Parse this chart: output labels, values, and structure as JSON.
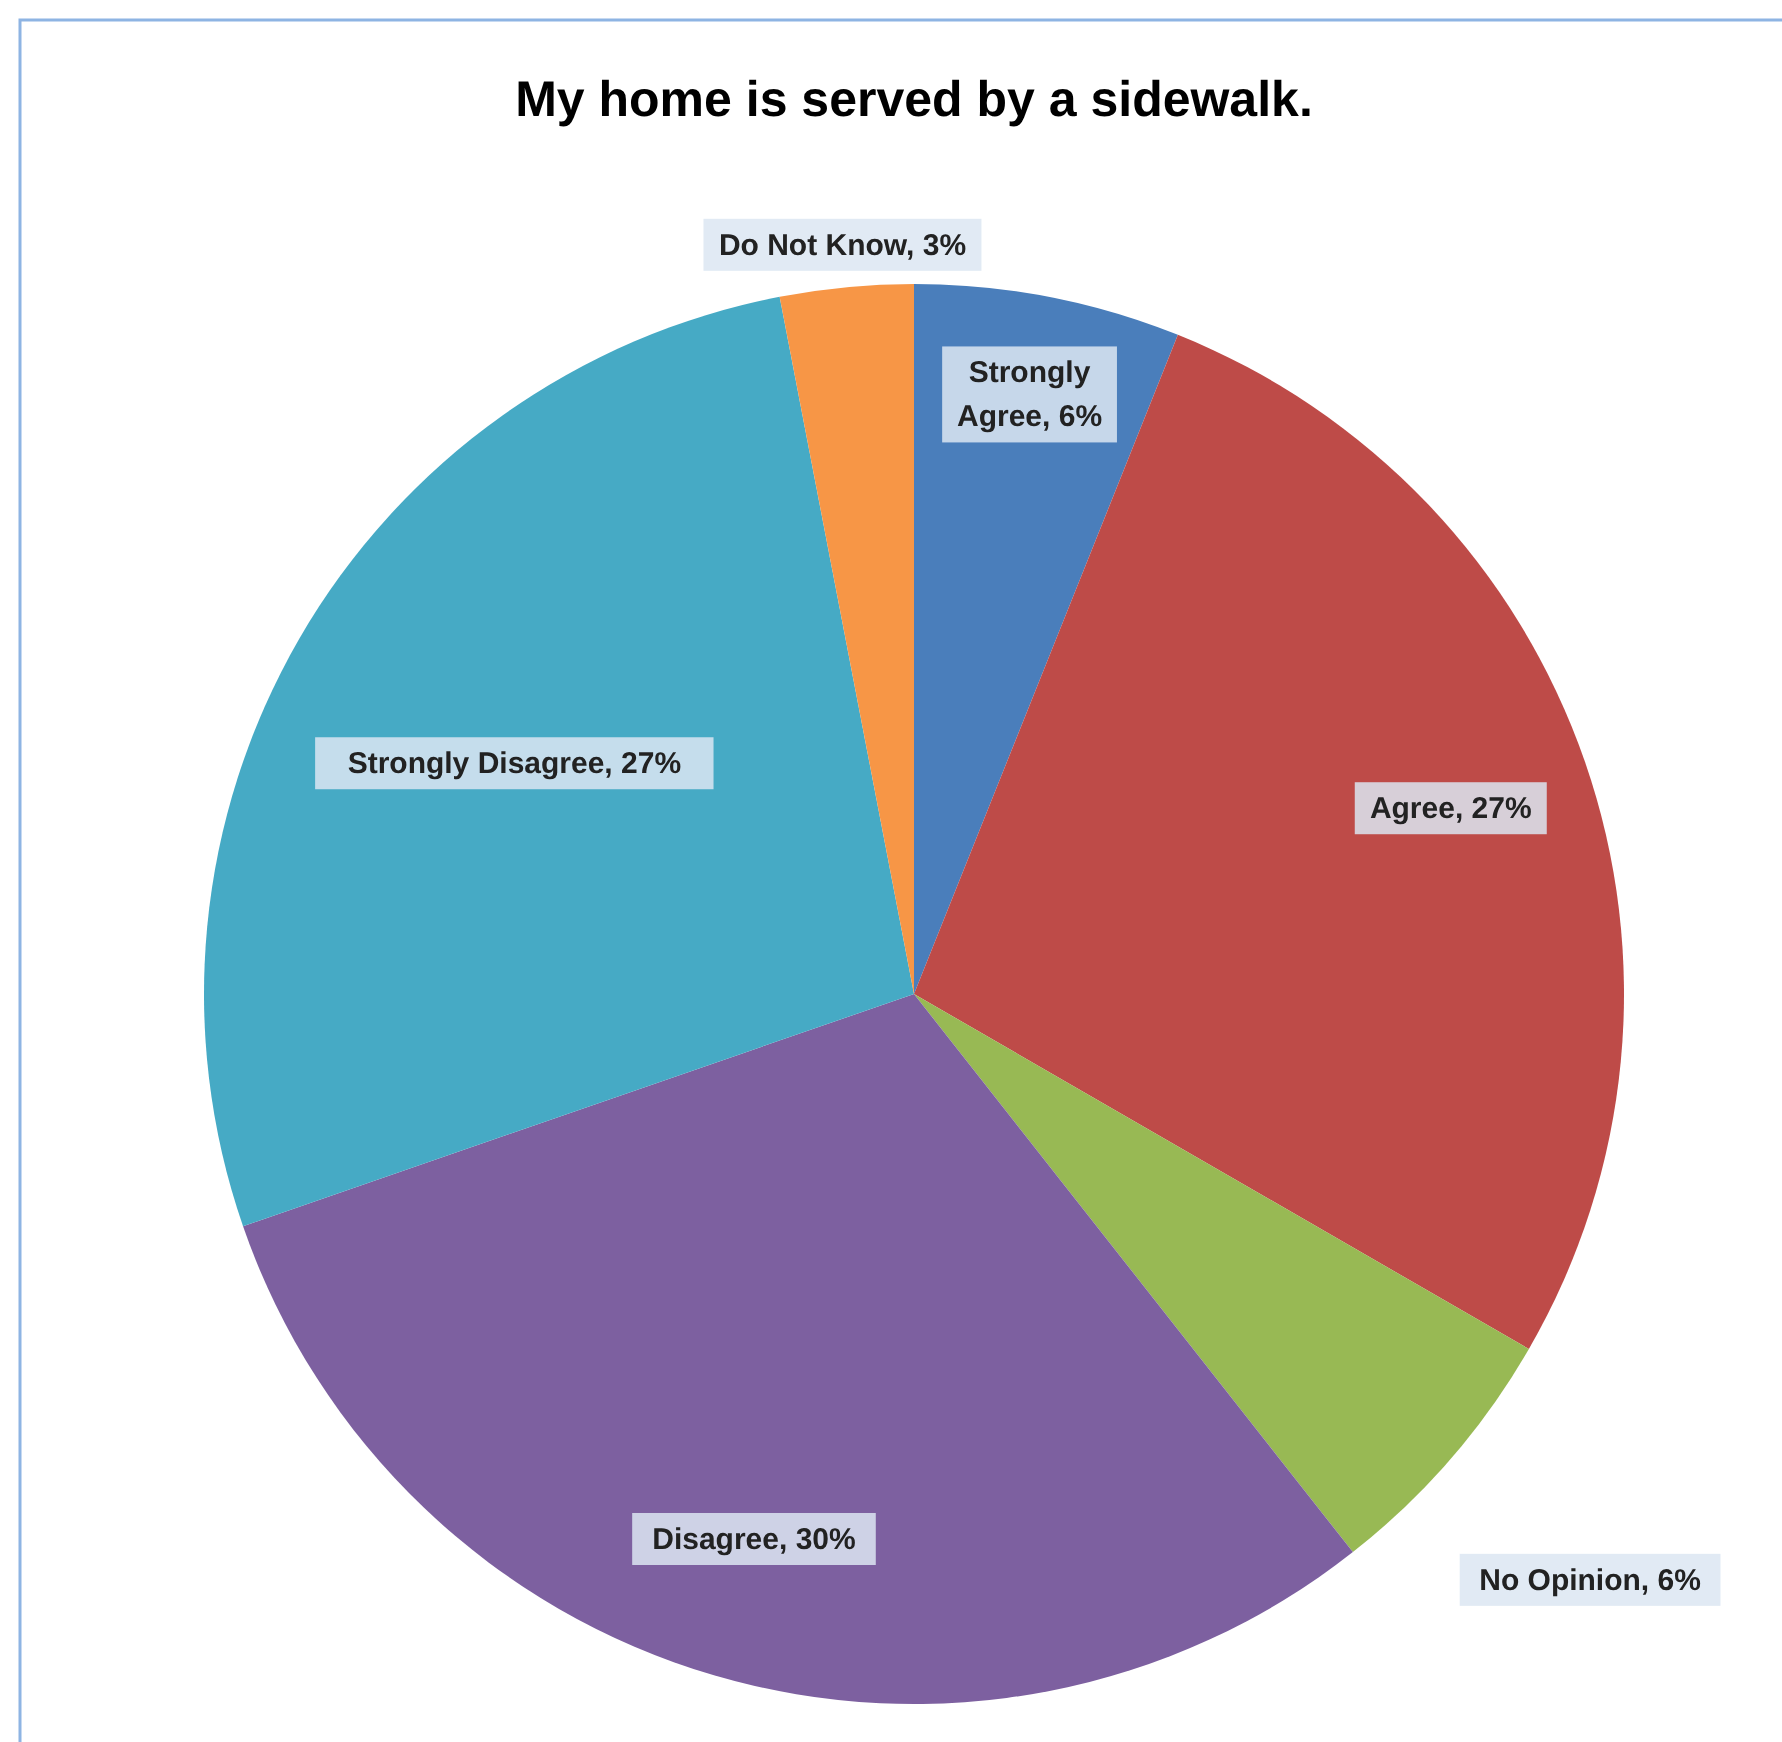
{
  "chart_data": {
    "type": "pie",
    "title": "My home is served by a sidewalk.",
    "categories": [
      "Strongly Agree",
      "Agree",
      "No Opinion",
      "Disagree",
      "Strongly Disagree",
      "Do Not Know"
    ],
    "values": [
      6,
      27,
      6,
      30,
      27,
      3
    ],
    "value_labels": [
      "6%",
      "27%",
      "6%",
      "30%",
      "27%",
      "3%"
    ],
    "colors": [
      "#4a7ebb",
      "#be4b48",
      "#98b954",
      "#7d60a0",
      "#46aac5",
      "#f79646"
    ]
  }
}
